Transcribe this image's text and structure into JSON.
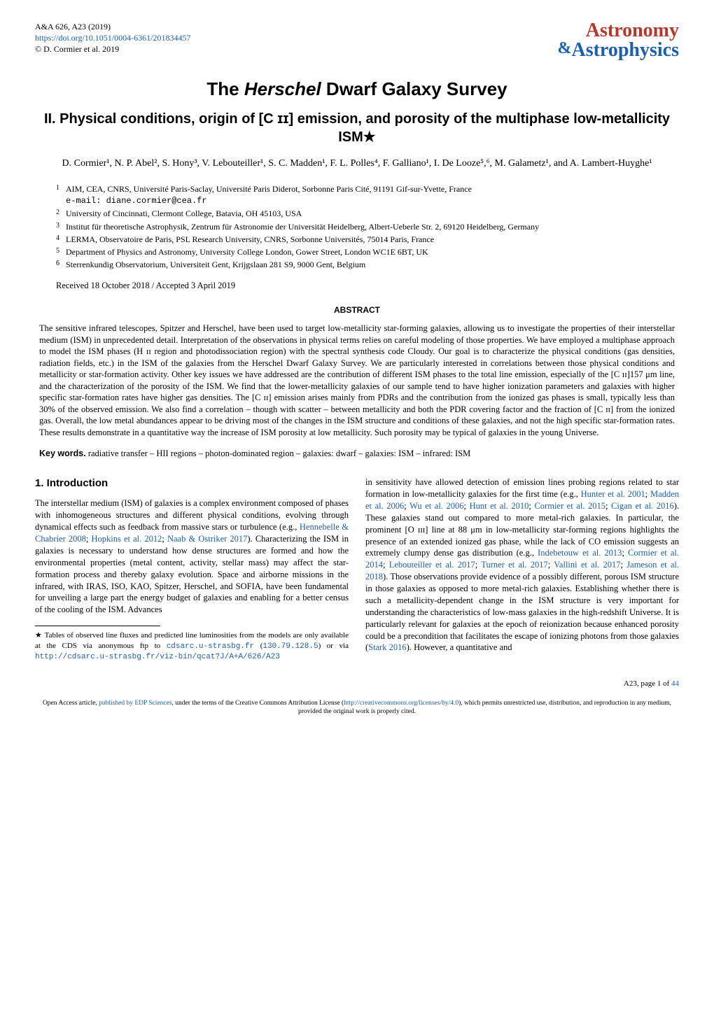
{
  "header": {
    "journal_ref": "A&A 626, A23 (2019)",
    "doi_url": "https://doi.org/10.1051/0004-6361/201834457",
    "copyright": "© D. Cormier et al. 2019",
    "logo_top": "Astronomy",
    "logo_amp": "&",
    "logo_bottom": "Astrophysics",
    "logo_color_red": "#b8372b",
    "logo_color_blue": "#1a5fb4"
  },
  "title": {
    "prefix": "The ",
    "herschel": "Herschel",
    "suffix": " Dwarf Galaxy Survey"
  },
  "subtitle": "II. Physical conditions, origin of [C ɪɪ] emission, and porosity of the multiphase low-metallicity ISM★",
  "authors": "D. Cormier¹, N. P. Abel², S. Hony³, V. Lebouteiller¹, S. C. Madden¹, F. L. Polles⁴, F. Galliano¹, I. De Looze⁵,⁶, M. Galametz¹, and A. Lambert-Huyghe¹",
  "affiliations": [
    {
      "n": "1",
      "text": "AIM, CEA, CNRS, Université Paris-Saclay, Université Paris Diderot, Sorbonne Paris Cité, 91191 Gif-sur-Yvette, France",
      "email": "e-mail: diane.cormier@cea.fr"
    },
    {
      "n": "2",
      "text": "University of Cincinnati, Clermont College, Batavia, OH 45103, USA"
    },
    {
      "n": "3",
      "text": "Institut für theoretische Astrophysik, Zentrum für Astronomie der Universität Heidelberg, Albert-Ueberle Str. 2, 69120 Heidelberg, Germany"
    },
    {
      "n": "4",
      "text": "LERMA, Observatoire de Paris, PSL Research University, CNRS, Sorbonne Universités, 75014 Paris, France"
    },
    {
      "n": "5",
      "text": "Department of Physics and Astronomy, University College London, Gower Street, London WC1E 6BT, UK"
    },
    {
      "n": "6",
      "text": "Sterrenkundig Observatorium, Universiteit Gent, Krijgslaan 281 S9, 9000 Gent, Belgium"
    }
  ],
  "dates": "Received 18 October 2018 / Accepted 3 April 2019",
  "abstract_label": "ABSTRACT",
  "abstract": "The sensitive infrared telescopes, Spitzer and Herschel, have been used to target low-metallicity star-forming galaxies, allowing us to investigate the properties of their interstellar medium (ISM) in unprecedented detail. Interpretation of the observations in physical terms relies on careful modeling of those properties. We have employed a multiphase approach to model the ISM phases (H ɪɪ region and photodissociation region) with the spectral synthesis code Cloudy. Our goal is to characterize the physical conditions (gas densities, radiation fields, etc.) in the ISM of the galaxies from the Herschel Dwarf Galaxy Survey. We are particularly interested in correlations between those physical conditions and metallicity or star-formation activity. Other key issues we have addressed are the contribution of different ISM phases to the total line emission, especially of the [C ɪɪ]157 μm line, and the characterization of the porosity of the ISM. We find that the lower-metallicity galaxies of our sample tend to have higher ionization parameters and galaxies with higher specific star-formation rates have higher gas densities. The [C ɪɪ] emission arises mainly from PDRs and the contribution from the ionized gas phases is small, typically less than 30% of the observed emission. We also find a correlation – though with scatter – between metallicity and both the PDR covering factor and the fraction of [C ɪɪ] from the ionized gas. Overall, the low metal abundances appear to be driving most of the changes in the ISM structure and conditions of these galaxies, and not the high specific star-formation rates. These results demonstrate in a quantitative way the increase of ISM porosity at low metallicity. Such porosity may be typical of galaxies in the young Universe.",
  "keywords_label": "Key words.",
  "keywords": " radiative transfer – HII regions – photon-dominated region – galaxies: dwarf – galaxies: ISM – infrared: ISM",
  "section1_title": "1. Introduction",
  "col_left_p1a": "The interstellar medium (ISM) of galaxies is a complex environment composed of phases with inhomogeneous structures and different physical conditions, evolving through dynamical effects such as feedback from massive stars or turbulence (e.g., ",
  "col_left_ref1": "Hennebelle & Chabrier 2008",
  "col_left_p1b": "; ",
  "col_left_ref2": "Hopkins et al. 2012",
  "col_left_p1c": "; ",
  "col_left_ref3": "Naab & Ostriker 2017",
  "col_left_p1d": "). Characterizing the ISM in galaxies is necessary to understand how dense structures are formed and how the environmental properties (metal content, activity, stellar mass) may affect the star-formation process and thereby galaxy evolution. Space and airborne missions in the infrared, with IRAS, ISO, KAO, Spitzer, Herschel, and SOFIA, have been fundamental for unveiling a large part the energy budget of galaxies and enabling for a better census of the cooling of the ISM. Advances",
  "footnote_star": "★",
  "footnote_a": " Tables of observed line fluxes and predicted line luminosities from the models are only available at the CDS via anonymous ftp to ",
  "footnote_l1": "cdsarc.u-strasbg.fr",
  "footnote_b": " (",
  "footnote_l2": "130.79.128.5",
  "footnote_c": ") or via ",
  "footnote_l3": "http://cdsarc.u-strasbg.fr/viz-bin/qcat?J/A+A/626/A23",
  "col_right_a": "in sensitivity have allowed detection of emission lines probing regions related to star formation in low-metallicity galaxies for the first time (e.g., ",
  "cr_r1": "Hunter et al. 2001",
  "col_right_b": "; ",
  "cr_r2": "Madden et al. 2006",
  "col_right_c": "; ",
  "cr_r3": "Wu et al. 2006",
  "col_right_d": "; ",
  "cr_r4": "Hunt et al. 2010",
  "col_right_e": "; ",
  "cr_r5": "Cormier et al. 2015",
  "col_right_f": "; ",
  "cr_r6": "Cigan et al. 2016",
  "col_right_g": "). These galaxies stand out compared to more metal-rich galaxies. In particular, the prominent [O ɪɪɪ] line at 88 μm in low-metallicity star-forming regions highlights the presence of an extended ionized gas phase, while the lack of CO emission suggests an extremely clumpy dense gas distribution (e.g., ",
  "cr_r7": "Indebetouw et al. 2013",
  "col_right_h": "; ",
  "cr_r8": "Cormier et al. 2014",
  "col_right_i": "; ",
  "cr_r9": "Lebouteiller et al. 2017",
  "col_right_j": "; ",
  "cr_r10": "Turner et al. 2017",
  "col_right_k": "; ",
  "cr_r11": "Vallini et al. 2017",
  "col_right_l": "; ",
  "cr_r12": "Jameson et al. 2018",
  "col_right_m": "). Those observations provide evidence of a possibly different, porous ISM structure in those galaxies as opposed to more metal-rich galaxies. Establishing whether there is such a metallicity-dependent change in the ISM structure is very important for understanding the characteristics of low-mass galaxies in the high-redshift Universe. It is particularly relevant for galaxies at the epoch of reionization because enhanced porosity could be a precondition that facilitates the escape of ionizing photons from those galaxies (",
  "cr_r13": "Stark 2016",
  "col_right_n": "). However, a quantitative and",
  "page_num": "A23, page 1 of ",
  "page_total": "44",
  "license_a": "Open Access article, ",
  "license_l1": "published by EDP Sciences",
  "license_b": ", under the terms of the Creative Commons Attribution License (",
  "license_l2": "http://creativecommons.org/licenses/by/4.0",
  "license_c": "), which permits unrestricted use, distribution, and reproduction in any medium, provided the original work is properly cited."
}
